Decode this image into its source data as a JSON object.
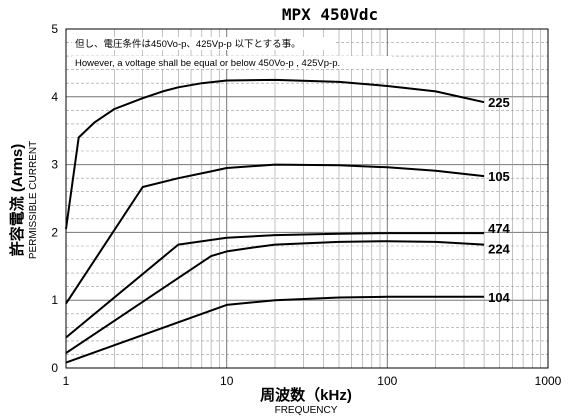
{
  "chart_data": {
    "type": "line",
    "title": "MPX 450Vdc",
    "xlabel": "周波数（kHz)",
    "xlabel_en": "FREQUENCY",
    "ylabel": "許容電流 (Arms)",
    "ylabel_en": "PERMISSIBLE CURRENT",
    "x_scale": "log",
    "xlim": [
      1,
      1000
    ],
    "ylim": [
      0,
      5
    ],
    "x_ticks": [
      "1",
      "10",
      "100",
      "1000"
    ],
    "y_ticks": [
      "0",
      "1",
      "2",
      "3",
      "4",
      "5"
    ],
    "grid": true,
    "annotations": [
      "但し、電圧条件は450Vo-p、425Vp-p 以下とする事。",
      "However, a voltage shall be equal or below 450Vo-p , 425Vp-p."
    ],
    "series": [
      {
        "name": "225",
        "x": [
          1,
          1.2,
          1.5,
          2,
          3,
          4,
          5,
          7,
          10,
          20,
          50,
          100,
          200,
          400
        ],
        "y": [
          2.05,
          3.4,
          3.62,
          3.82,
          3.98,
          4.08,
          4.14,
          4.2,
          4.24,
          4.25,
          4.22,
          4.16,
          4.08,
          3.92
        ]
      },
      {
        "name": "105",
        "x": [
          1,
          3,
          5,
          8,
          10,
          20,
          50,
          100,
          200,
          400
        ],
        "y": [
          0.95,
          2.67,
          2.8,
          2.9,
          2.95,
          3.0,
          2.99,
          2.96,
          2.91,
          2.83
        ]
      },
      {
        "name": "474",
        "x": [
          1,
          5,
          10,
          20,
          50,
          100,
          200,
          400
        ],
        "y": [
          0.45,
          1.82,
          1.92,
          1.96,
          1.98,
          1.99,
          1.99,
          1.99
        ]
      },
      {
        "name": "224",
        "x": [
          1,
          8,
          10,
          15,
          20,
          50,
          100,
          200,
          400
        ],
        "y": [
          0.22,
          1.65,
          1.72,
          1.78,
          1.82,
          1.86,
          1.87,
          1.86,
          1.82
        ]
      },
      {
        "name": "104",
        "x": [
          1,
          10,
          20,
          50,
          100,
          200,
          400
        ],
        "y": [
          0.08,
          0.93,
          1.0,
          1.04,
          1.05,
          1.05,
          1.05
        ]
      }
    ]
  }
}
